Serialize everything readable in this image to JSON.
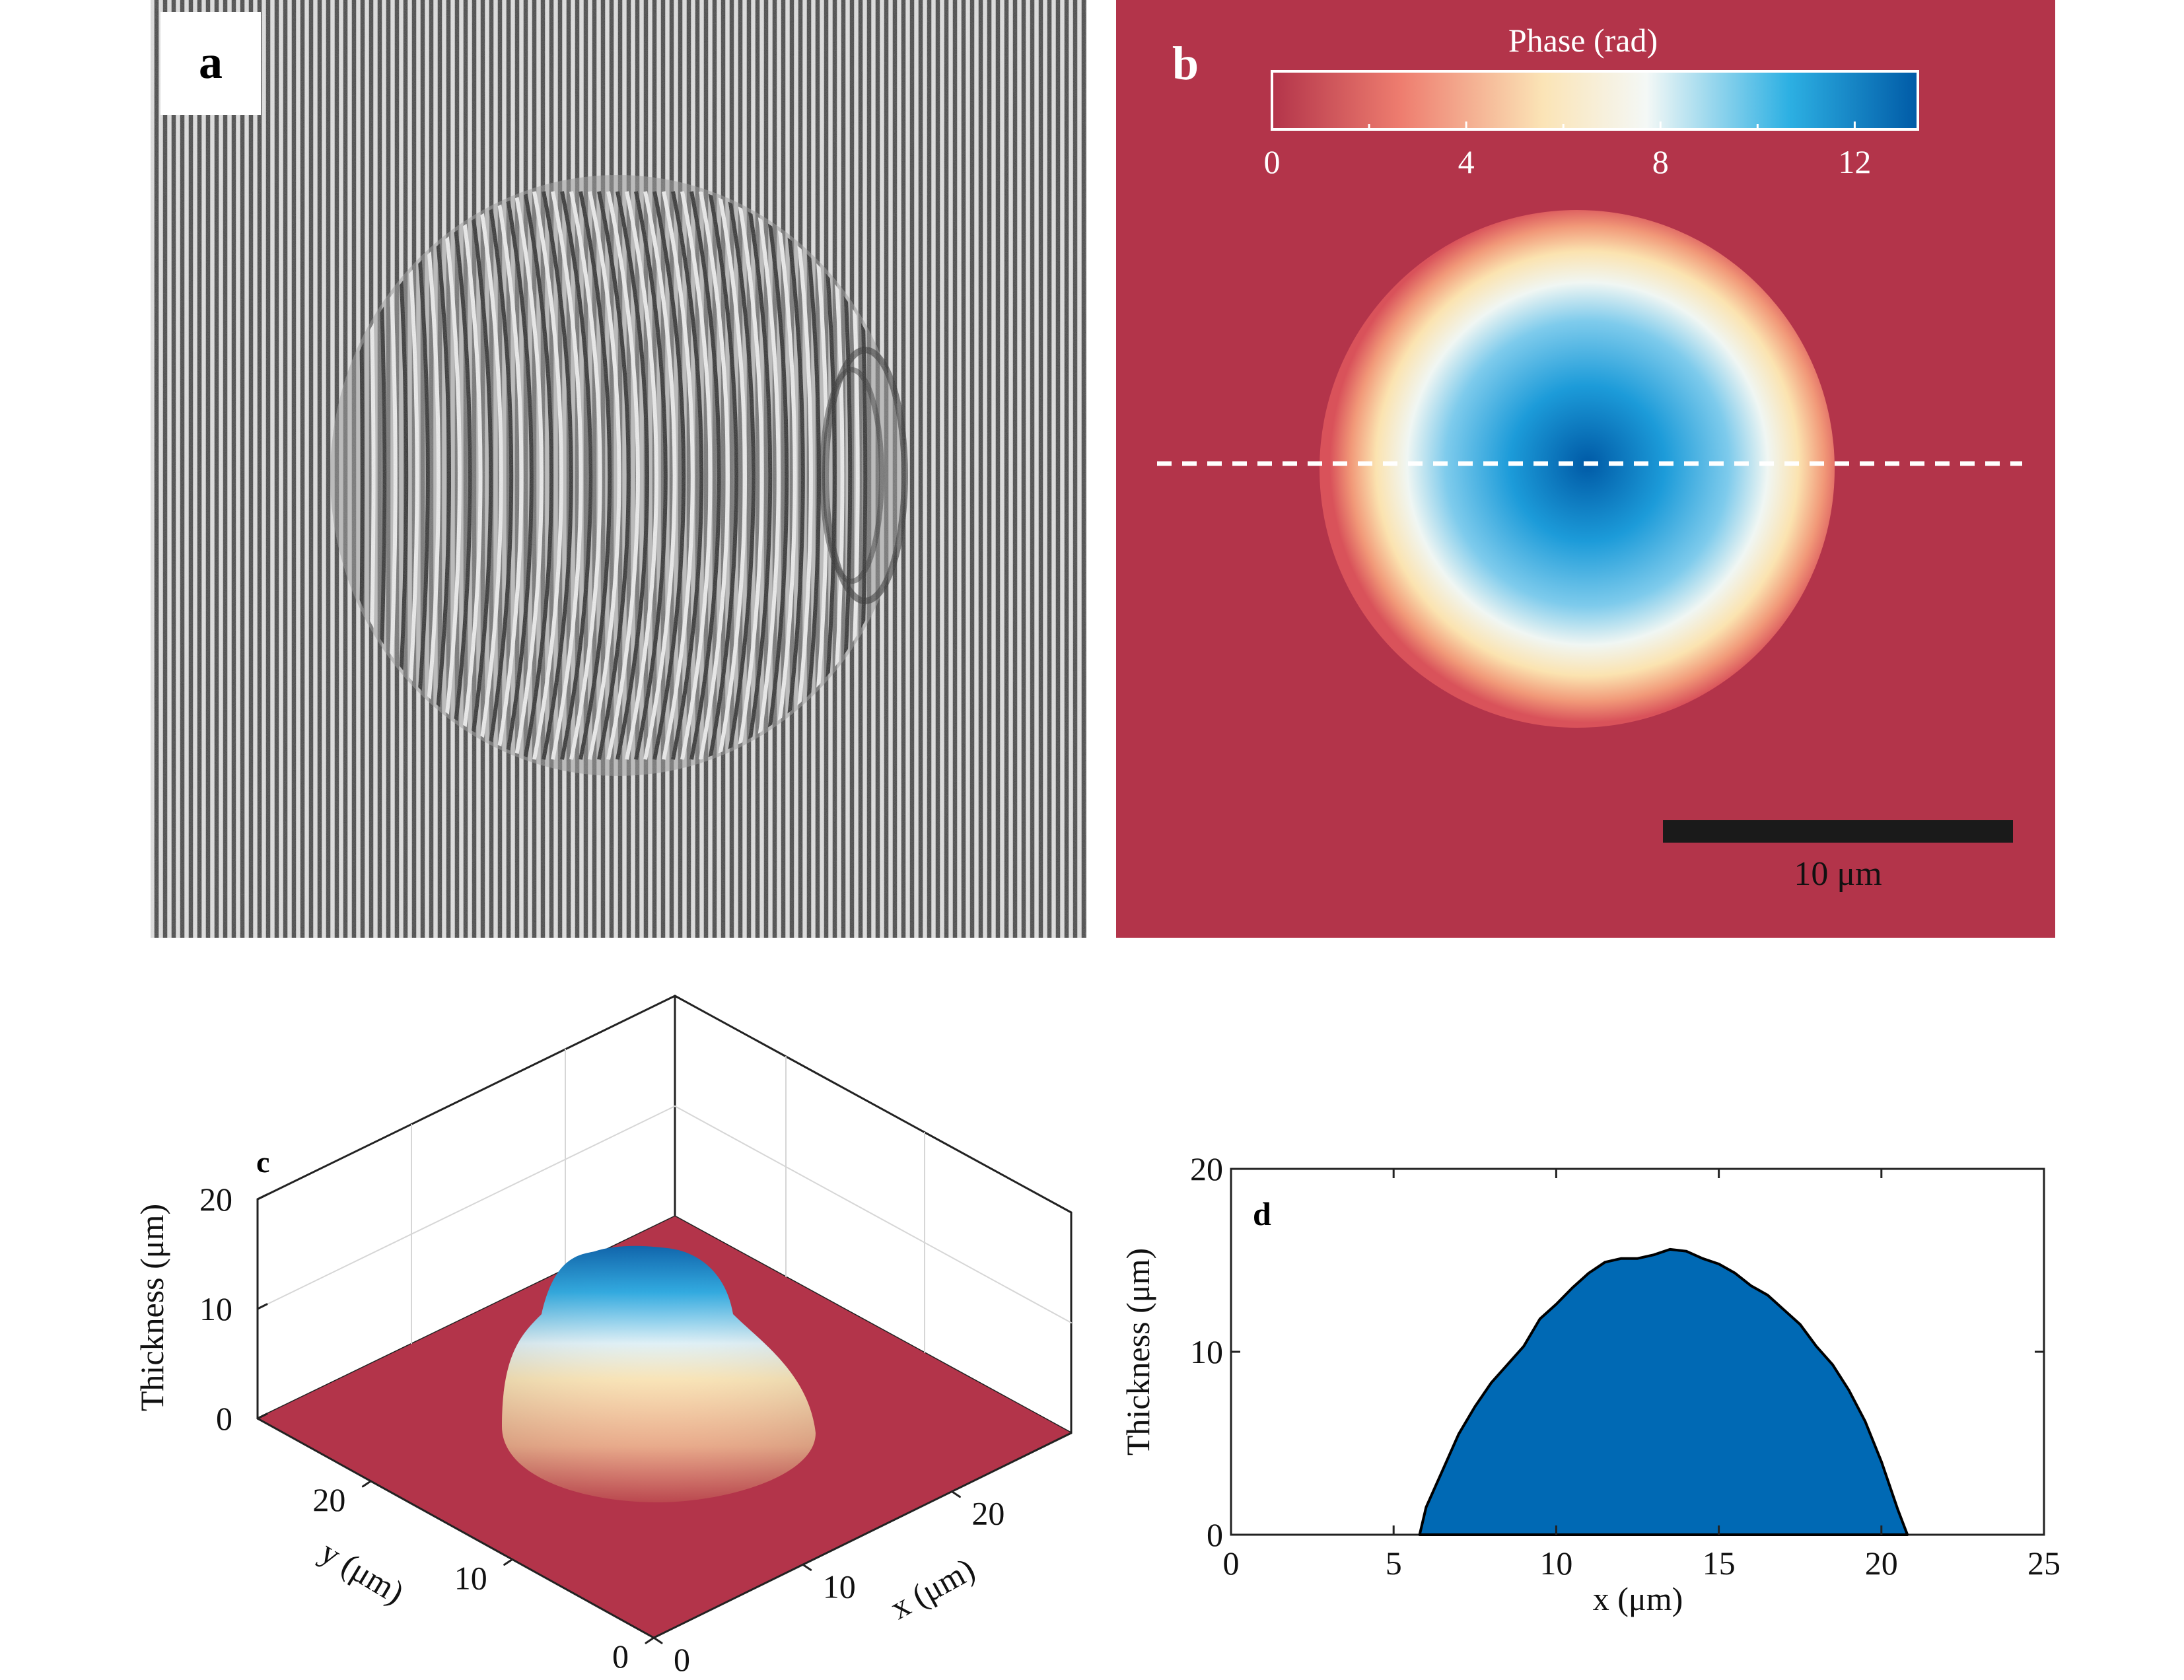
{
  "figure": {
    "colors": {
      "background_red": "#b3344a",
      "fill_blue": "#0069b4",
      "colormap": [
        "#b3344a",
        "#ee7d6f",
        "#fbe9b9",
        "#f4f8f6",
        "#2db0e3",
        "#005aa6"
      ]
    }
  },
  "panel_a": {
    "label": "a",
    "description_type": "interferogram"
  },
  "panel_b": {
    "label": "b",
    "colorbar": {
      "title": "Phase (rad)",
      "ticks": [
        "0",
        "4",
        "8",
        "12"
      ],
      "range": [
        0,
        13.3
      ]
    },
    "scale_bar": {
      "label": "10 μm",
      "length_um": 10
    }
  },
  "panel_c": {
    "label": "c",
    "zlabel": "Thickness (μm)",
    "xlabel": "x (μm)",
    "ylabel": "y (μm)",
    "z_ticks": [
      "20",
      "10",
      "0"
    ],
    "x_ticks": [
      "0",
      "10",
      "20"
    ],
    "y_ticks": [
      "0",
      "10",
      "20"
    ]
  },
  "panel_d": {
    "label": "d",
    "xlabel": "x (μm)",
    "ylabel": "Thickness (μm)",
    "x_ticks": [
      "0",
      "5",
      "10",
      "15",
      "20",
      "25"
    ],
    "y_ticks": [
      "0",
      "10",
      "20"
    ]
  },
  "chart_data": [
    {
      "type": "heatmap",
      "panel": "b",
      "colorbar_label": "Phase (rad)",
      "colorbar_range": [
        0,
        13.3
      ],
      "colorbar_ticks": [
        0,
        4,
        8,
        12
      ],
      "feature": "circular phase dome, peak ~13 rad at center, background 0",
      "scale_bar_um": 10
    },
    {
      "type": "area",
      "panel": "c",
      "description": "3D surface of thickness over x-y plane",
      "xlim": [
        0,
        28
      ],
      "ylim": [
        0,
        28
      ],
      "zlim": [
        0,
        20
      ],
      "peak_thickness_um": 15.5,
      "zlabel": "Thickness (μm)",
      "xlabel": "x (μm)",
      "ylabel": "y (μm)"
    },
    {
      "type": "area",
      "panel": "d",
      "xlabel": "x (μm)",
      "ylabel": "Thickness (μm)",
      "xlim": [
        0,
        25
      ],
      "ylim": [
        0,
        20
      ],
      "x": [
        5.8,
        6.0,
        6.5,
        7.0,
        7.5,
        8.0,
        8.5,
        9.0,
        9.5,
        10.0,
        10.5,
        11.0,
        11.5,
        12.0,
        12.5,
        13.0,
        13.5,
        14.0,
        14.5,
        15.0,
        15.5,
        16.0,
        16.5,
        17.0,
        17.5,
        18.0,
        18.5,
        19.0,
        19.5,
        20.0,
        20.5,
        20.8
      ],
      "y": [
        0,
        1.5,
        3.5,
        5.5,
        7.0,
        8.3,
        9.3,
        10.3,
        11.8,
        12.6,
        13.5,
        14.3,
        14.9,
        15.1,
        15.1,
        15.3,
        15.6,
        15.5,
        15.1,
        14.8,
        14.3,
        13.6,
        13.1,
        12.3,
        11.5,
        10.3,
        9.3,
        7.9,
        6.2,
        4.0,
        1.4,
        0
      ]
    }
  ]
}
